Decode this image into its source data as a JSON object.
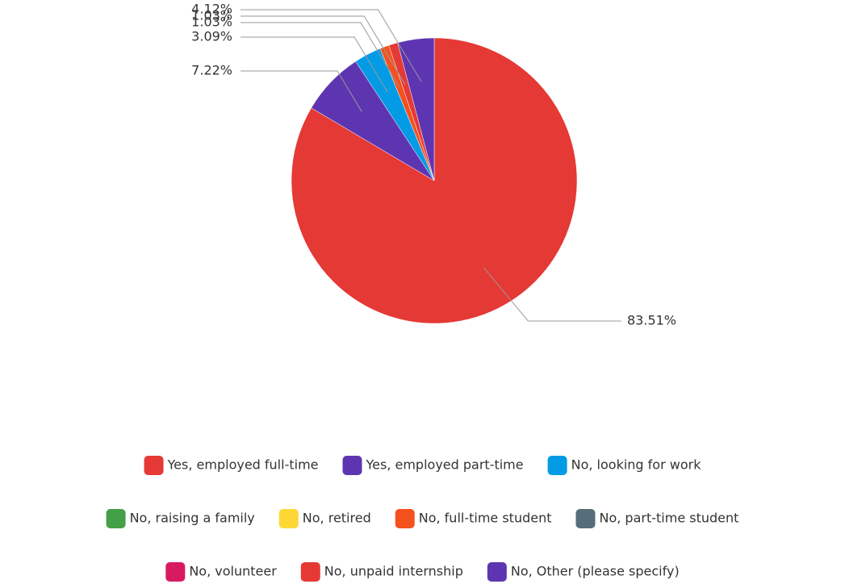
{
  "chart_data": {
    "type": "pie",
    "categories": [
      "Yes, employed full-time",
      "Yes, employed part-time",
      "No, looking for work",
      "No, raising a family",
      "No, retired",
      "No, full-time student",
      "No, part-time student",
      "No, volunteer",
      "No, unpaid internship",
      "No, Other (please specify)"
    ],
    "values": [
      83.51,
      7.22,
      3.09,
      0,
      0,
      1.03,
      0,
      0,
      1.03,
      4.12
    ],
    "value_labels": [
      "83.51%",
      "7.22%",
      "3.09%",
      null,
      null,
      "1.03%",
      null,
      null,
      "1.03%",
      "4.12%"
    ],
    "colors": [
      "#e53935",
      "#5e35b1",
      "#039be5",
      "#43a047",
      "#fdd835",
      "#f4511e",
      "#546e7a",
      "#d81b60",
      "#e53935",
      "#5e35b1"
    ],
    "legend": "bottom"
  }
}
